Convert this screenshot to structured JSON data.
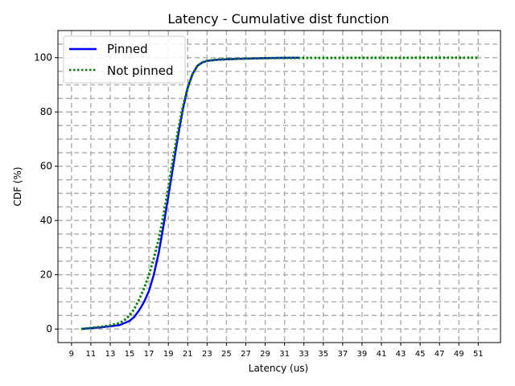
{
  "chart_data": {
    "type": "line",
    "title": "Latency - Cumulative dist function",
    "xlabel": "Latency (us)",
    "ylabel": "CDF (%)",
    "xlim": [
      7.6,
      53.3
    ],
    "ylim": [
      -5,
      110
    ],
    "xticks": [
      9,
      11,
      13,
      15,
      17,
      19,
      21,
      23,
      25,
      27,
      29,
      31,
      33,
      35,
      37,
      39,
      41,
      43,
      45,
      47,
      49,
      51
    ],
    "yticks": [
      0,
      20,
      40,
      60,
      80,
      100
    ],
    "minor_ygrid": [
      5,
      10,
      15,
      25,
      30,
      35,
      45,
      50,
      55,
      65,
      70,
      75,
      85,
      90,
      95,
      105
    ],
    "grid": true,
    "legend_position": "top-left",
    "series": [
      {
        "name": "Pinned",
        "color": "#0000ff",
        "style": "solid",
        "x": [
          10,
          11,
          12,
          13,
          14,
          15,
          15.5,
          16,
          16.5,
          17,
          17.5,
          18,
          18.5,
          19,
          19.5,
          20,
          20.5,
          21,
          21.5,
          22,
          22.5,
          23,
          24,
          25,
          26,
          27,
          28,
          29,
          30,
          31,
          32.5
        ],
        "y": [
          0,
          0.3,
          0.6,
          1,
          1.5,
          3,
          4.5,
          7,
          10,
          14,
          20,
          28,
          38,
          49,
          60,
          71,
          81,
          89,
          94,
          97,
          98.2,
          98.8,
          99.2,
          99.4,
          99.55,
          99.65,
          99.75,
          99.82,
          99.9,
          99.95,
          100
        ]
      },
      {
        "name": "Not pinned",
        "color": "#008000",
        "style": "dotted",
        "x": [
          10,
          11,
          12,
          13,
          14,
          14.5,
          15,
          15.5,
          16,
          16.5,
          17,
          17.5,
          18,
          18.5,
          19,
          19.5,
          20,
          20.5,
          21,
          21.5,
          22,
          22.5,
          23,
          24,
          26,
          28,
          30,
          33,
          40,
          45,
          51
        ],
        "y": [
          0,
          0.4,
          0.8,
          1.3,
          2.3,
          3.4,
          5,
          7.5,
          11,
          15,
          20,
          26,
          33,
          42,
          52,
          63,
          73,
          82,
          89,
          94,
          97,
          98.3,
          98.9,
          99.3,
          99.6,
          99.75,
          99.85,
          99.92,
          99.96,
          99.98,
          100
        ]
      }
    ]
  }
}
